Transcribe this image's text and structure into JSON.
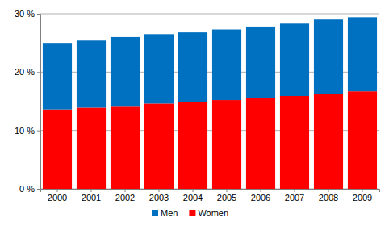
{
  "chart_data": {
    "type": "bar",
    "stacked": true,
    "grid": true,
    "legend": "bottom",
    "categories": [
      "2000",
      "2001",
      "2002",
      "2003",
      "2004",
      "2005",
      "2006",
      "2007",
      "2008",
      "2009"
    ],
    "series": [
      {
        "name": "Women",
        "color": "#ff0000",
        "values": [
          13.6,
          13.9,
          14.2,
          14.6,
          14.9,
          15.2,
          15.5,
          15.9,
          16.3,
          16.7
        ]
      },
      {
        "name": "Men",
        "color": "#0070c0",
        "values": [
          11.4,
          11.5,
          11.8,
          11.9,
          11.9,
          12.1,
          12.3,
          12.4,
          12.7,
          12.7
        ]
      }
    ],
    "ylim": [
      0,
      30
    ],
    "yticks": [
      {
        "value": 0,
        "label": "0 %"
      },
      {
        "value": 10,
        "label": "10 %"
      },
      {
        "value": 20,
        "label": "20 %"
      },
      {
        "value": 30,
        "label": "30 %"
      }
    ]
  }
}
